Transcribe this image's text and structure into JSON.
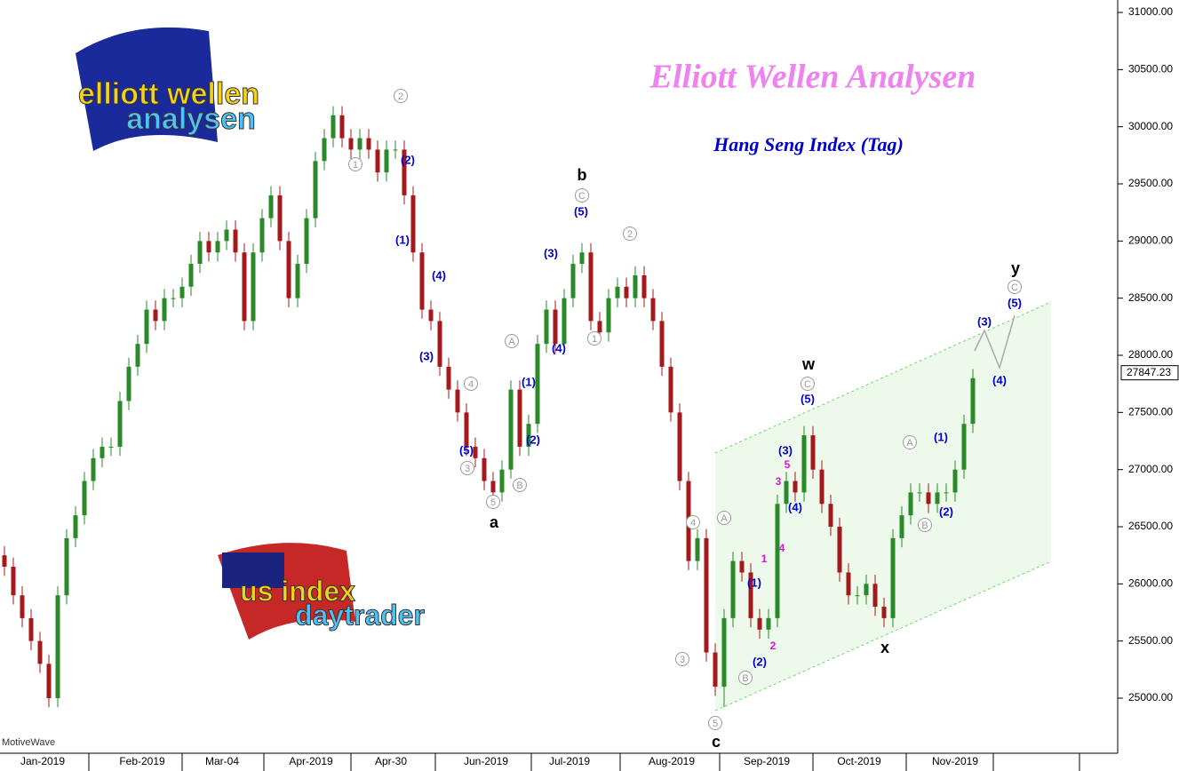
{
  "chart_data": {
    "type": "candlestick",
    "title": "Elliott Wellen Analysen",
    "subtitle": "Hang Seng Index (Tag)",
    "watermark": "MotiveWave",
    "logos": [
      "elliott wellen",
      "analysen",
      "us index",
      "daytrader"
    ],
    "last_price": {
      "value": 27847.23,
      "label": "27847.23"
    },
    "ylim": [
      24518,
      31109
    ],
    "yticks": [
      {
        "value": 25000,
        "label": "25000.00"
      },
      {
        "value": 25500,
        "label": "25500.00"
      },
      {
        "value": 26000,
        "label": "26000.00"
      },
      {
        "value": 26500,
        "label": "26500.00"
      },
      {
        "value": 27000,
        "label": "27000.00"
      },
      {
        "value": 27500,
        "label": "27500.00"
      },
      {
        "value": 28000,
        "label": "28000.00"
      },
      {
        "value": 28500,
        "label": "28500.00"
      },
      {
        "value": 29000,
        "label": "29000.00"
      },
      {
        "value": 29500,
        "label": "29500.00"
      },
      {
        "value": 30000,
        "label": "30000.00"
      },
      {
        "value": 30500,
        "label": "30500.00"
      },
      {
        "value": 31000,
        "label": "31000.00"
      }
    ],
    "date_labels": [
      "Jan-2019",
      "Feb-2019",
      "Mar-04",
      "Apr-2019",
      "Apr-30",
      "Jun-2019",
      "Jul-2019",
      "Aug-2019",
      "Sep-2019",
      "Oct-2019",
      "Nov-2019"
    ],
    "up_color": "#2a8a2a",
    "down_color": "#a3191c",
    "open": [
      26250,
      26150,
      25900,
      25700,
      25500,
      25300,
      25000,
      25900,
      26400,
      26600,
      26900,
      27100,
      27200,
      27200,
      27600,
      27900,
      28100,
      28400,
      28300,
      28500,
      28500,
      28600,
      28800,
      29000,
      28900,
      29000,
      29100,
      28900,
      28300,
      28900,
      29200,
      29400,
      29000,
      28500,
      28800,
      29200,
      29700,
      29900,
      30100,
      29900,
      29800,
      29900,
      29800,
      29600,
      29800,
      29800,
      29400,
      28900,
      28400,
      28300,
      27900,
      27700,
      27500,
      27200,
      27100,
      26900,
      26800,
      27000,
      27700,
      27200,
      27400,
      28100,
      28400,
      28100,
      28500,
      28800,
      28900,
      28300,
      28200,
      28500,
      28600,
      28500,
      28700,
      28500,
      28300,
      27900,
      27500,
      26900,
      26200,
      26400,
      25400,
      25100,
      25700,
      26200,
      26100,
      25700,
      25600,
      25700,
      26700,
      26900,
      26800,
      27300,
      27000,
      26700,
      26500,
      26100,
      25900,
      25900,
      26000,
      25800,
      25700,
      26400,
      26600,
      26800,
      26800,
      26700,
      26800,
      26800,
      27000,
      27400
    ],
    "high": [
      26330,
      26230,
      25980,
      25780,
      25580,
      25380,
      25980,
      26480,
      26680,
      26980,
      27180,
      27280,
      27280,
      27680,
      27980,
      28180,
      28480,
      28480,
      28580,
      28580,
      28680,
      28880,
      29080,
      29080,
      29080,
      29180,
      29180,
      28980,
      28980,
      29280,
      29480,
      29480,
      29080,
      28880,
      29280,
      29780,
      29980,
      30180,
      30180,
      29980,
      29980,
      29980,
      29880,
      29880,
      29880,
      29880,
      29480,
      28980,
      28480,
      28380,
      27980,
      27780,
      27580,
      27280,
      27180,
      26980,
      27080,
      27780,
      27780,
      27480,
      28180,
      28480,
      28480,
      28580,
      28880,
      28980,
      28980,
      28380,
      28580,
      28680,
      28680,
      28780,
      28780,
      28580,
      28380,
      27980,
      27580,
      26980,
      26480,
      26480,
      25480,
      25780,
      26280,
      26280,
      26180,
      25780,
      25780,
      26780,
      26980,
      26980,
      27380,
      27380,
      27080,
      26780,
      26580,
      26180,
      25980,
      26080,
      26080,
      25880,
      26480,
      26680,
      26880,
      26880,
      26880,
      26880,
      26880,
      27080,
      27480,
      27880
    ],
    "low": [
      26070,
      25820,
      25620,
      25420,
      25220,
      24920,
      24920,
      25820,
      26320,
      26520,
      26820,
      27020,
      27120,
      27120,
      27520,
      27820,
      28020,
      28220,
      28220,
      28420,
      28420,
      28520,
      28720,
      28820,
      28820,
      28920,
      28820,
      28220,
      28220,
      28820,
      29120,
      28920,
      28420,
      28420,
      28720,
      29120,
      29620,
      29820,
      29820,
      29720,
      29720,
      29720,
      29520,
      29520,
      29720,
      29320,
      28820,
      28320,
      28220,
      27820,
      27620,
      27420,
      27120,
      27020,
      26820,
      26720,
      26720,
      26920,
      27120,
      27120,
      27320,
      28020,
      28020,
      28020,
      28420,
      28720,
      28220,
      28120,
      28120,
      28420,
      28420,
      28420,
      28420,
      28220,
      27820,
      27420,
      26820,
      26120,
      26120,
      25320,
      25020,
      24920,
      25620,
      26020,
      25620,
      25520,
      25520,
      25620,
      26620,
      26720,
      26720,
      26920,
      26620,
      26420,
      26020,
      25820,
      25820,
      25820,
      25720,
      25620,
      25620,
      26320,
      26520,
      26720,
      26620,
      26620,
      26720,
      26720,
      26920,
      27320
    ],
    "close": [
      26150,
      25900,
      25700,
      25500,
      25300,
      25000,
      25900,
      26400,
      26600,
      26900,
      27100,
      27200,
      27200,
      27600,
      27900,
      28100,
      28400,
      28300,
      28500,
      28500,
      28600,
      28800,
      29000,
      28900,
      29000,
      29100,
      28900,
      28300,
      28900,
      29200,
      29400,
      29000,
      28500,
      28800,
      29200,
      29700,
      29900,
      30100,
      29900,
      29800,
      29900,
      29800,
      29600,
      29800,
      29800,
      29400,
      28900,
      28400,
      28300,
      27900,
      27700,
      27500,
      27200,
      27100,
      26900,
      26800,
      27000,
      27700,
      27200,
      27400,
      28100,
      28400,
      28100,
      28500,
      28800,
      28900,
      28300,
      28200,
      28500,
      28600,
      28500,
      28700,
      28500,
      28300,
      27900,
      27500,
      26900,
      26200,
      26400,
      25400,
      25100,
      25700,
      26200,
      26100,
      25700,
      25600,
      25700,
      26700,
      26900,
      26800,
      27300,
      27000,
      26700,
      26500,
      26100,
      25900,
      25900,
      26000,
      25800,
      25700,
      26400,
      26600,
      26800,
      26800,
      26700,
      26800,
      26800,
      27000,
      27400,
      27800
    ],
    "wave_labels_blue": [
      "(2)",
      "(1)",
      "(4)",
      "(3)",
      "(5)",
      "(1)",
      "(2)",
      "(3)",
      "(4)",
      "(5)",
      "(1)",
      "(2)",
      "(3)",
      "(4)",
      "(5)",
      "(1)",
      "(2)",
      "(3)",
      "(4)",
      "(5)"
    ],
    "wave_labels_gray": [
      "1",
      "2",
      "3",
      "4",
      "5",
      "A",
      "B",
      "C",
      "1",
      "2",
      "3",
      "4",
      "5",
      "A",
      "B",
      "C",
      "A",
      "B",
      "C"
    ],
    "wave_labels_black": [
      "a",
      "b",
      "c",
      "w",
      "x",
      "y"
    ],
    "wave_labels_magenta": [
      "1",
      "2",
      "3",
      "4",
      "5"
    ]
  }
}
